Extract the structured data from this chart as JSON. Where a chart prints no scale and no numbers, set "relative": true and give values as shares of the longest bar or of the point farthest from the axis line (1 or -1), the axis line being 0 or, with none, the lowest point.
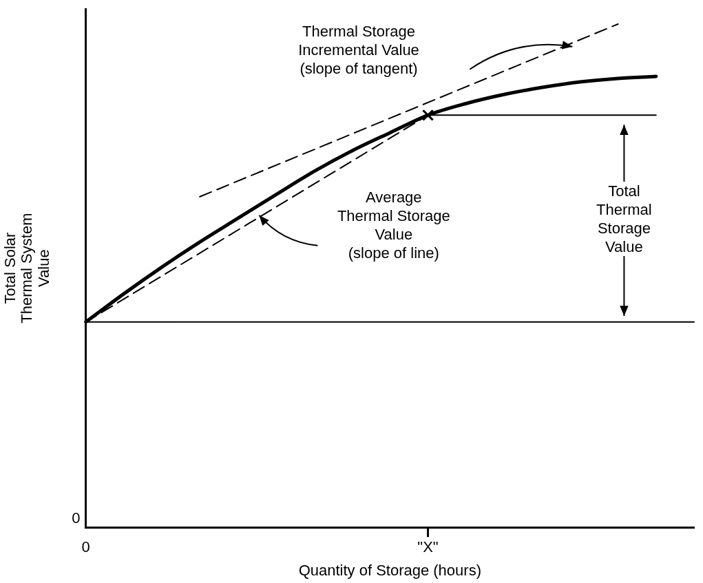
{
  "chart_data": {
    "type": "line",
    "relative": true,
    "xlabel": "Quantity of Storage (hours)",
    "ylabel": "Total Solar\nThermal System\nValue",
    "categories": [
      "0",
      null,
      null,
      null,
      null,
      null,
      null,
      null,
      null,
      "\"X\"",
      null,
      null,
      null,
      null,
      null,
      null,
      null
    ],
    "grid": false,
    "legend": false,
    "series": [
      {
        "color": "#000000",
        "marker": "none",
        "line_style": "solid",
        "values": [
          0.408,
          0.464,
          0.517,
          0.567,
          0.614,
          0.661,
          0.707,
          0.748,
          0.784,
          0.819,
          0.842,
          0.86,
          0.874,
          0.885,
          0.892,
          0.896,
          null
        ]
      },
      {
        "color": "#000000",
        "marker": "none",
        "line_style": "dashed",
        "values": [
          null,
          null,
          null,
          0.657,
          null,
          null,
          null,
          null,
          null,
          null,
          null,
          null,
          null,
          null,
          1,
          null,
          null
        ]
      },
      {
        "color": "#000000",
        "marker": "none",
        "line_style": "dashed",
        "values": [
          0.408,
          null,
          null,
          null,
          null,
          null,
          null,
          null,
          null,
          0.819,
          null,
          null,
          null,
          null,
          null,
          null,
          null
        ]
      },
      {
        "color": "#000000",
        "marker": "none",
        "line_style": "solid",
        "values": [
          0.408,
          null,
          null,
          null,
          null,
          null,
          null,
          null,
          null,
          null,
          null,
          null,
          null,
          null,
          null,
          null,
          0.408
        ]
      },
      {
        "color": "#000000",
        "marker": "none",
        "line_style": "solid",
        "values": [
          null,
          null,
          null,
          null,
          null,
          null,
          null,
          null,
          null,
          0.819,
          null,
          null,
          null,
          null,
          null,
          0.819,
          null
        ]
      },
      {
        "type": "scatter",
        "color": "#000000",
        "marker": "cross",
        "values": [
          null,
          null,
          null,
          null,
          null,
          null,
          null,
          null,
          null,
          0.819,
          null,
          null,
          null,
          null,
          null,
          null,
          null
        ]
      }
    ],
    "annotations": [
      "Thermal Storage\nIncremental Value\n(slope of tangent)",
      "Average\nThermal Storage\nValue\n(slope of line)",
      "Total\nThermal\nStorage\nValue",
      "0"
    ]
  }
}
